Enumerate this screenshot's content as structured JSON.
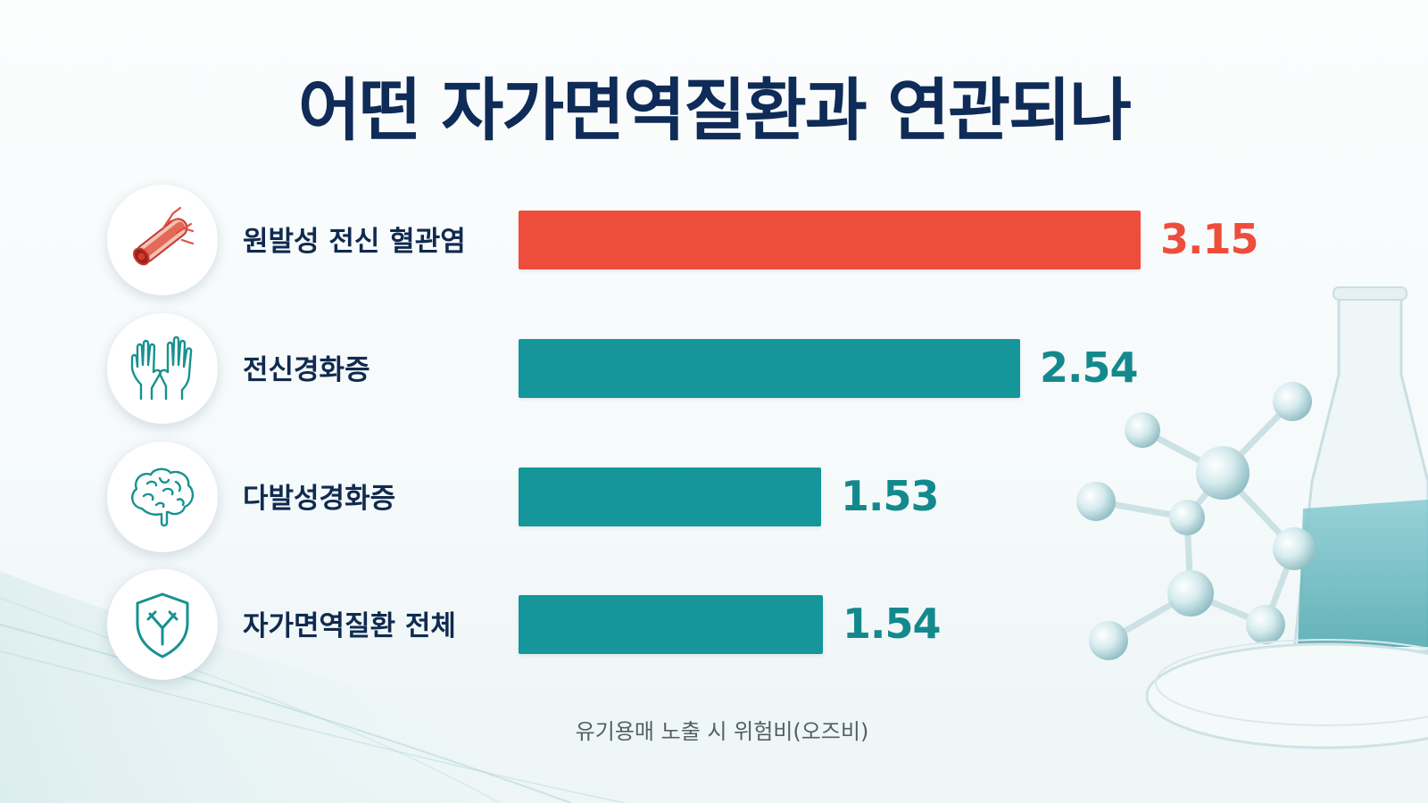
{
  "title": "어떤 자가면역질환과 연관되나",
  "footnote": "유기용매 노출 시 위험비(오즈비)",
  "colors": {
    "title": "#0f2b57",
    "highlight": "#ef4d3c",
    "bar": "#14969a",
    "value_teal": "#14898d"
  },
  "chart_data": {
    "type": "bar",
    "orientation": "horizontal",
    "categories": [
      "원발성 전신 혈관염",
      "전신경화증",
      "다발성경화증",
      "자가면역질환 전체"
    ],
    "values": [
      3.15,
      2.54,
      1.53,
      1.54
    ],
    "value_labels": [
      "3.15",
      "2.54",
      "1.53",
      "1.54"
    ],
    "icons": [
      "blood-vessel-icon",
      "hands-icon",
      "brain-icon",
      "shield-antibody-icon"
    ],
    "bar_colors": [
      "#ef4d3c",
      "#14969a",
      "#14969a",
      "#14969a"
    ],
    "value_colors": [
      "#ef4d3c",
      "#14898d",
      "#14898d",
      "#14898d"
    ],
    "xlim": [
      0,
      3.15
    ],
    "grid": false,
    "legend": "none"
  }
}
